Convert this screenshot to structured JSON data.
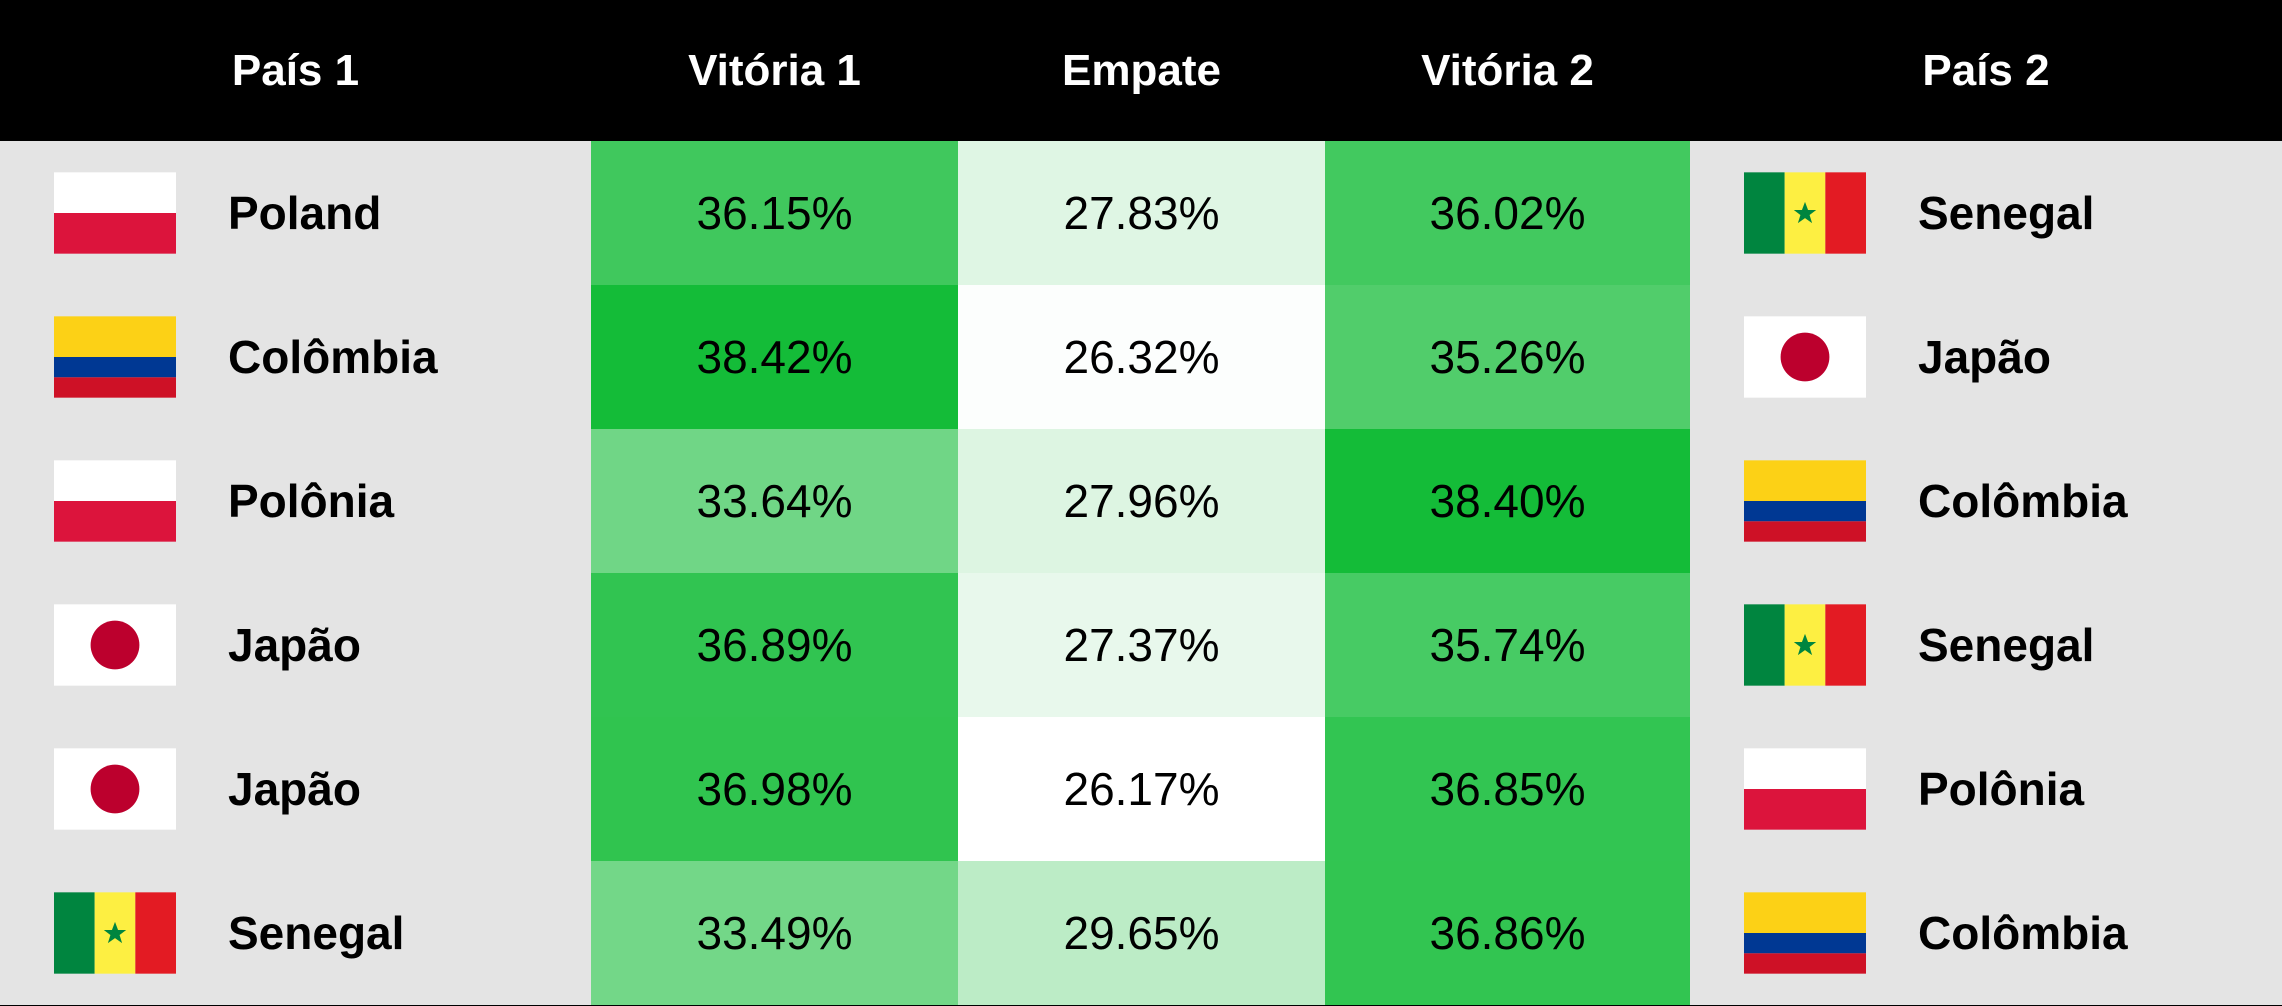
{
  "table": {
    "header": [
      "País 1",
      "Vitória 1",
      "Empate",
      "Vitória 2",
      "País 2"
    ],
    "rows": [
      [
        "Poland",
        "36.15%",
        "27.83%",
        "36.02%",
        "Senegal"
      ],
      [
        "Colômbia",
        "38.42%",
        "26.32%",
        "35.26%",
        "Japão"
      ],
      [
        "Polônia",
        "33.64%",
        "27.96%",
        "38.40%",
        "Colômbia"
      ],
      [
        "Japão",
        "36.89%",
        "27.37%",
        "35.74%",
        "Senegal"
      ],
      [
        "Japão",
        "36.98%",
        "26.17%",
        "36.85%",
        "Polônia"
      ],
      [
        "Senegal",
        "33.49%",
        "29.65%",
        "36.86%",
        "Colômbia"
      ]
    ]
  }
}
